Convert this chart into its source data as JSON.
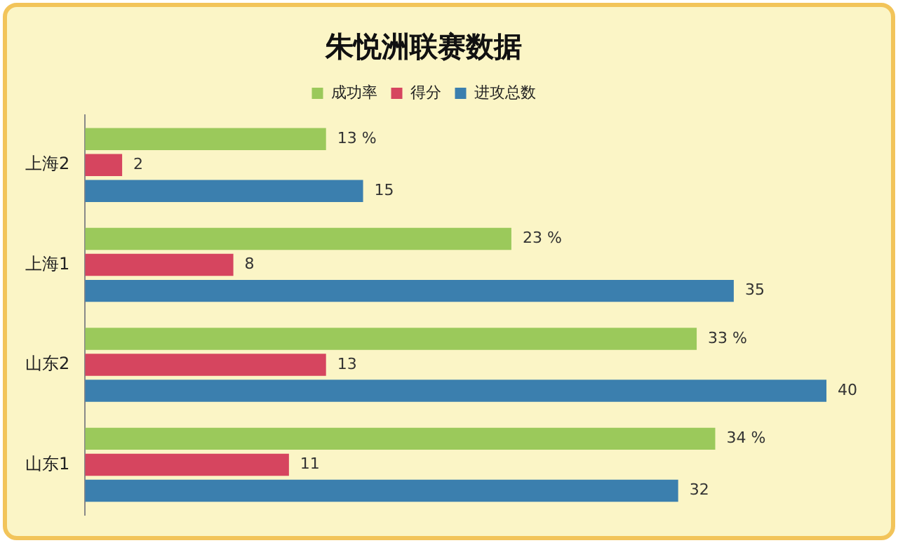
{
  "chart_data": {
    "type": "bar",
    "orientation": "horizontal",
    "title": "朱悦洲联赛数据",
    "categories": [
      "上海2",
      "上海1",
      "山东2",
      "山东1"
    ],
    "legend": "top",
    "series": [
      {
        "name": "成功率",
        "color": "#9bc95b",
        "values": [
          13,
          23,
          33,
          34
        ],
        "value_labels": [
          "13 %",
          "23 %",
          "33 %",
          "34 %"
        ]
      },
      {
        "name": "得分",
        "color": "#d6455f",
        "values": [
          2,
          8,
          13,
          11
        ],
        "value_labels": [
          "2",
          "8",
          "13",
          "11"
        ]
      },
      {
        "name": "进攻总数",
        "color": "#3b7fae",
        "values": [
          15,
          35,
          40,
          32
        ],
        "value_labels": [
          "15",
          "35",
          "40",
          "32"
        ]
      }
    ]
  }
}
